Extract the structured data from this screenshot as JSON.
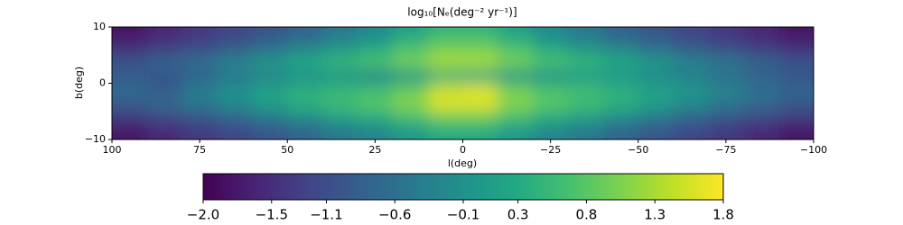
{
  "chart_data": {
    "type": "heatmap",
    "title": "log₁₀[Nₑ(deg⁻² yr⁻¹)]",
    "x_label": "l(deg)",
    "y_label": "b(deg)",
    "colormap": "viridis",
    "x": [
      95,
      85,
      75,
      65,
      55,
      45,
      35,
      25,
      15,
      5,
      -5,
      -15,
      -25,
      -35,
      -45,
      -55,
      -65,
      -75,
      -85,
      -95
    ],
    "y": [
      8.75,
      6.25,
      3.75,
      1.25,
      -1.25,
      -3.75,
      -6.25,
      -8.75
    ],
    "z": [
      [
        -1.8,
        -1.6,
        -1.4,
        -1.2,
        -1.0,
        -0.8,
        -0.5,
        -0.2,
        0.2,
        0.5,
        0.5,
        0.2,
        -0.2,
        -0.5,
        -0.8,
        -1.0,
        -1.2,
        -1.4,
        -1.6,
        -1.8
      ],
      [
        -1.5,
        -1.3,
        -1.1,
        -0.9,
        -0.6,
        -0.3,
        0.0,
        0.3,
        0.7,
        1.0,
        1.0,
        0.7,
        0.3,
        0.0,
        -0.3,
        -0.6,
        -0.9,
        -1.1,
        -1.3,
        -1.5
      ],
      [
        -1.0,
        -0.8,
        -0.6,
        -0.3,
        0.0,
        0.3,
        0.5,
        0.7,
        1.0,
        1.3,
        1.3,
        1.0,
        0.7,
        0.5,
        0.3,
        0.0,
        -0.3,
        -0.5,
        -0.8,
        -1.0
      ],
      [
        -0.9,
        -1.0,
        -0.8,
        -0.5,
        -0.3,
        -0.1,
        0.0,
        -0.2,
        0.0,
        0.4,
        0.3,
        0.0,
        -0.1,
        0.1,
        0.0,
        -0.2,
        -0.4,
        -0.6,
        -0.8,
        -1.0
      ],
      [
        -0.7,
        -0.9,
        -0.4,
        -0.1,
        0.2,
        0.4,
        0.5,
        0.6,
        0.9,
        1.5,
        1.6,
        1.0,
        0.7,
        0.6,
        0.4,
        0.2,
        0.0,
        -0.3,
        -0.6,
        -0.8
      ],
      [
        -0.9,
        -0.7,
        -0.5,
        -0.2,
        0.1,
        0.4,
        0.6,
        0.8,
        1.1,
        1.6,
        1.6,
        1.1,
        0.8,
        0.6,
        0.4,
        0.1,
        -0.2,
        -0.5,
        -0.7,
        -0.9
      ],
      [
        -1.4,
        -1.2,
        -1.0,
        -0.8,
        -0.5,
        -0.2,
        0.1,
        0.3,
        0.6,
        0.9,
        0.9,
        0.6,
        0.3,
        0.1,
        -0.2,
        -0.5,
        -0.8,
        -1.0,
        -1.2,
        -1.4
      ],
      [
        -1.8,
        -1.6,
        -1.4,
        -1.2,
        -1.0,
        -0.8,
        -0.5,
        -0.3,
        0.0,
        0.3,
        0.3,
        0.0,
        -0.3,
        -0.5,
        -0.8,
        -1.0,
        -1.2,
        -1.4,
        -1.6,
        -1.8
      ]
    ],
    "xlim": [
      100,
      -100
    ],
    "xticks": [
      100,
      75,
      50,
      25,
      0,
      {
        "value": -25,
        "label": "−25"
      },
      {
        "value": -50,
        "label": "−50"
      },
      {
        "value": -75,
        "label": "−75"
      },
      {
        "value": -100,
        "label": "−100"
      }
    ],
    "ylim": [
      -10,
      10
    ],
    "yticks": [
      {
        "value": -10,
        "label": "−10"
      },
      0,
      10
    ],
    "colorbar": {
      "lim": [
        -2,
        1.8
      ],
      "ticks": [
        {
          "value": -2.0,
          "label": "−2.0"
        },
        {
          "value": -1.5,
          "label": "−1.5"
        },
        {
          "value": -1.1,
          "label": "−1.1"
        },
        {
          "value": -0.6,
          "label": "−0.6"
        },
        {
          "value": -0.1,
          "label": "−0.1"
        },
        0.3,
        0.8,
        1.3,
        1.8
      ]
    }
  }
}
